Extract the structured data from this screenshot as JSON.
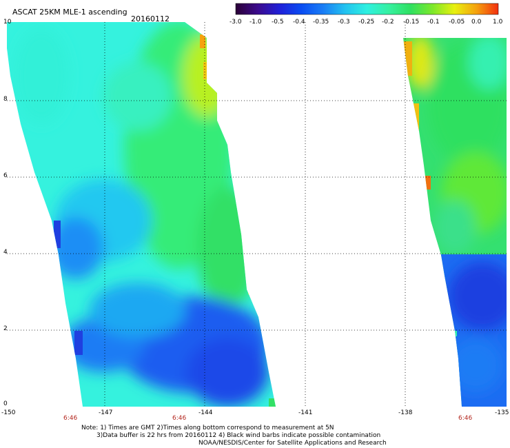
{
  "header": {
    "title": "ASCAT 25KM MLE-1 ascending",
    "date": "20160112"
  },
  "colorbar": {
    "labels": [
      "-3.0",
      "-1.0",
      "-0.5",
      "-0.4",
      "-0.35",
      "-0.3",
      "-0.25",
      "-0.2",
      "-0.15",
      "-0.1",
      "-0.05",
      "0.0",
      "1.0"
    ],
    "stops": [
      "#2b0036",
      "#3b0a8c",
      "#2020d8",
      "#0a4cf2",
      "#1a7df5",
      "#22c2f0",
      "#2ef0e0",
      "#36f0a0",
      "#2fe060",
      "#7de82a",
      "#e8f010",
      "#f5a20e",
      "#f22f10"
    ]
  },
  "axes": {
    "lat_ticks": [
      "10",
      "8",
      "6",
      "4",
      "2",
      "0"
    ],
    "lon_ticks": [
      "-150",
      "-147",
      "-144",
      "-141",
      "-138",
      "-135"
    ],
    "time_labels": [
      "6:46",
      "6:46",
      "6:46"
    ]
  },
  "notes": {
    "line1": "Note: 1) Times are GMT 2)Times along bottom correspond to measurement at 5N",
    "line2": "3)Data buffer is 22 hrs from 20160112 4) Black wind barbs indicate possible contamination",
    "line3": "NOAA/NESDIS/Center for Satellite Applications and Research"
  },
  "colors": {
    "background": "#ffffff",
    "grid": "#000000",
    "deep_blue": "#1f4fe8",
    "blue": "#1a7df5",
    "cyan": "#2ef0e0",
    "aqua": "#36f0c8",
    "green": "#33e066",
    "yellow": "#e8f010",
    "orange": "#f5a20e"
  }
}
